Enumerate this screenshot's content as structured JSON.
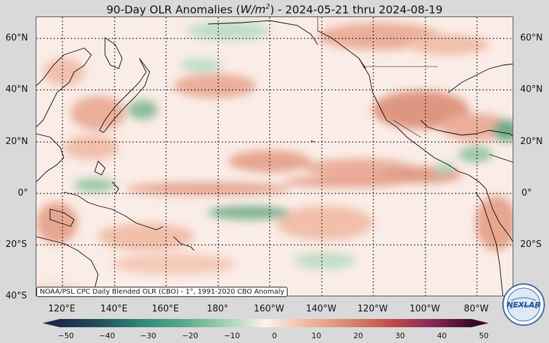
{
  "title": {
    "prefix": "90-Day OLR Anomalies (",
    "unit_base": "W/m",
    "unit_exp": "2",
    "suffix": ") - 2024-05-21 thru 2024-08-19"
  },
  "lat_labels": [
    "60°N",
    "40°N",
    "20°N",
    "0°",
    "20°S",
    "40°S"
  ],
  "lon_labels": [
    "120°E",
    "140°E",
    "160°E",
    "180°",
    "160°W",
    "140°W",
    "120°W",
    "100°W",
    "80°W"
  ],
  "source_note": "NOAA/PSL CPC Daily Blended OLR (CBO) - 1°, 1991-2020 CBO Anomaly",
  "colorbar": {
    "min": -50,
    "max": 50,
    "ticks": [
      "−50",
      "−40",
      "−30",
      "−20",
      "−10",
      "0",
      "10",
      "20",
      "30",
      "40",
      "50"
    ]
  },
  "logo": {
    "text": "NEXLAB",
    "icon": "psl-nexlab-logo"
  },
  "colors": {
    "negative_strong": "#1a2a4a",
    "negative_mid": "#2e8a7a",
    "negative_light": "#9fd0b0",
    "neutral": "#fbf3ef",
    "positive_light": "#f0b8a0",
    "positive_mid": "#c0504a",
    "positive_strong": "#7a1f5a",
    "positive_max": "#3a0a2a"
  }
}
